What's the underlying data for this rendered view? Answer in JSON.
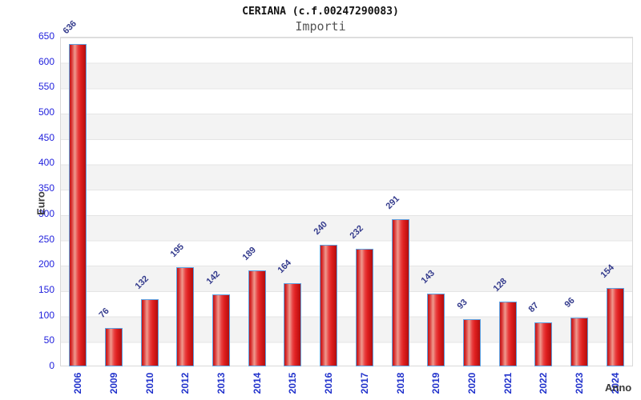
{
  "header": {
    "title": "CERIANA (c.f.00247290083)",
    "subtitle": "Importi"
  },
  "chart_data": {
    "type": "bar",
    "title": "CERIANA (c.f.00247290083)",
    "subtitle": "Importi",
    "xlabel": "Anno",
    "ylabel": "Euro",
    "categories": [
      "2006",
      "2009",
      "2010",
      "2012",
      "2013",
      "2014",
      "2015",
      "2016",
      "2017",
      "2018",
      "2019",
      "2020",
      "2021",
      "2022",
      "2023",
      "2024"
    ],
    "values": [
      636,
      76,
      132,
      195,
      142,
      189,
      164,
      240,
      232,
      291,
      143,
      93,
      128,
      87,
      96,
      154
    ],
    "ylim": [
      0,
      650
    ],
    "yticks": [
      0,
      50,
      100,
      150,
      200,
      250,
      300,
      350,
      400,
      450,
      500,
      550,
      600,
      650
    ],
    "grid": "horizontal gridlines with alternating white/gray 50-unit bands",
    "legend": "none",
    "bar_value_labels": "rotated 45deg above bars",
    "x_tick_rotation": "vertical"
  },
  "colors": {
    "bar_fill_red": "#e02020",
    "bar_highlight": "#ef9a8e",
    "bar_border_blue": "#5ea2e2",
    "tick_label_blue": "#2222dd",
    "value_label_navy": "#333a8c",
    "band_gray": "#f3f3f3",
    "gridline_gray": "#e4e4e4",
    "title_black": "#111111",
    "subtitle_gray": "#555555",
    "axis_label_gray": "#3a3a3a"
  }
}
